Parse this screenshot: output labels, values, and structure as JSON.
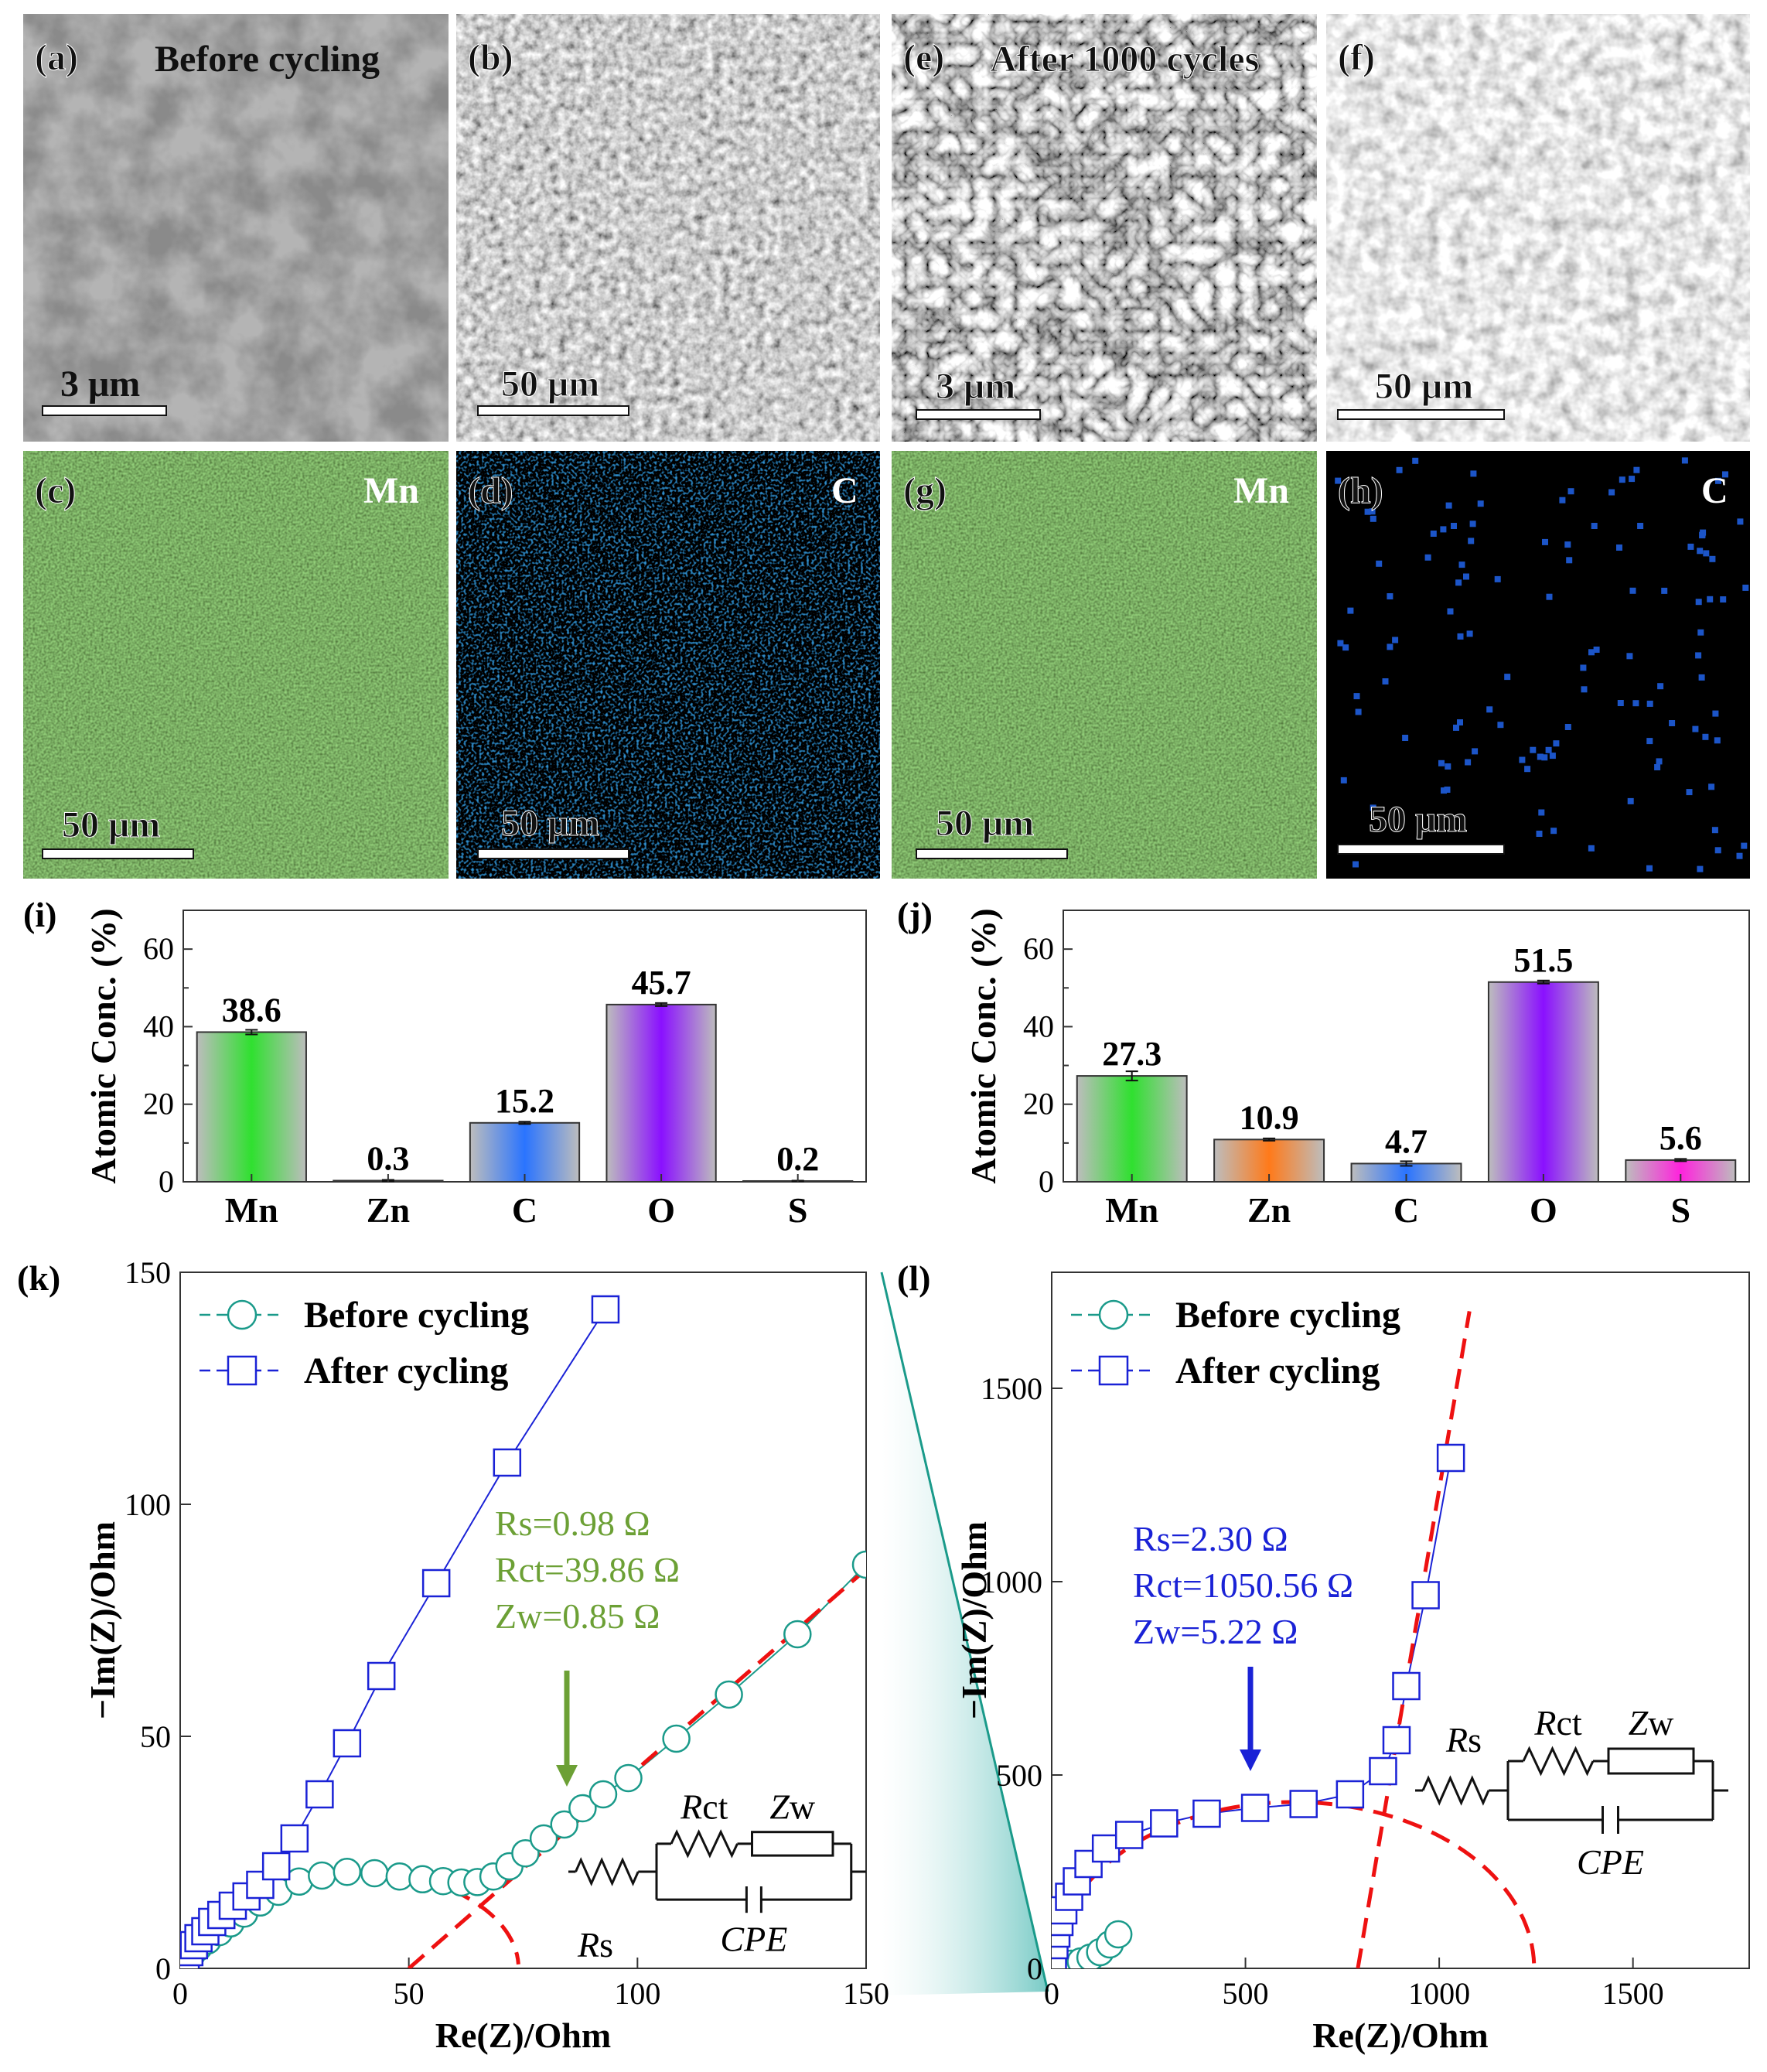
{
  "panels": {
    "a": {
      "label": "(a)",
      "caption": "Before cycling",
      "scale": "3 μm"
    },
    "b": {
      "label": "(b)",
      "scale": "50 μm"
    },
    "e": {
      "label": "(e)",
      "caption": "After 1000 cycles",
      "scale": "3 μm"
    },
    "f": {
      "label": "(f)",
      "scale": "50 μm"
    },
    "c": {
      "label": "(c)",
      "element": "Mn",
      "scale": "50 μm"
    },
    "d": {
      "label": "(d)",
      "element": "C",
      "scale": "50 μm"
    },
    "g": {
      "label": "(g)",
      "element": "Mn",
      "scale": "50 μm"
    },
    "h": {
      "label": "(h)",
      "element": "C",
      "scale": "50 μm"
    },
    "i": {
      "label": "(i)"
    },
    "j": {
      "label": "(j)"
    },
    "k": {
      "label": "(k)"
    },
    "l": {
      "label": "(l)"
    }
  },
  "colors": {
    "mn": "#2fe02f",
    "zn": "#ff7a1a",
    "c": "#2a74ff",
    "o": "#8a10ff",
    "s": "#ff22dd",
    "before": "#1a9a8a",
    "after": "#1a22d6",
    "fit": "#ee1111",
    "annot_before": "#6ca035",
    "annot_after": "#1a22d6"
  },
  "chart_data": [
    {
      "id": "i",
      "type": "bar",
      "categories": [
        "Mn",
        "Zn",
        "C",
        "O",
        "S"
      ],
      "values": [
        38.6,
        0.3,
        15.2,
        45.7,
        0.2
      ],
      "value_labels": [
        "38.6",
        "0.3",
        "15.2",
        "45.7",
        "0.2"
      ],
      "errors": [
        0.6,
        0.2,
        0.3,
        0.4,
        0.1
      ],
      "ylabel": "Atomic Conc. (%)",
      "ylim": [
        0,
        70
      ],
      "yticks": [
        0,
        20,
        40,
        60
      ],
      "tick_labels": [
        "0",
        "20",
        "40",
        "60"
      ]
    },
    {
      "id": "j",
      "type": "bar",
      "categories": [
        "Mn",
        "Zn",
        "C",
        "O",
        "S"
      ],
      "values": [
        27.3,
        10.9,
        4.7,
        51.5,
        5.6
      ],
      "value_labels": [
        "27.3",
        "10.9",
        "4.7",
        "51.5",
        "5.6"
      ],
      "errors": [
        1.2,
        0.3,
        0.6,
        0.4,
        0.3
      ],
      "ylabel": "Atomic Conc. (%)",
      "ylim": [
        0,
        70
      ],
      "yticks": [
        0,
        20,
        40,
        60
      ],
      "tick_labels": [
        "0",
        "20",
        "40",
        "60"
      ]
    },
    {
      "id": "k",
      "type": "scatter",
      "xlabel": "Re(Z)/Ohm",
      "ylabel": "−Im(Z)/Ohm",
      "xlim": [
        0,
        150
      ],
      "ylim": [
        0,
        150
      ],
      "xticks": [
        0,
        50,
        100,
        150
      ],
      "yticks": [
        0,
        50,
        100,
        150
      ],
      "xtick_labels": [
        "0",
        "50",
        "100",
        "150"
      ],
      "ytick_labels": [
        "0",
        "50",
        "100",
        "150"
      ],
      "legend": [
        "Before cycling",
        "After cycling"
      ],
      "series": [
        {
          "name": "Before cycling",
          "marker": "circle",
          "x": [
            0.5,
            1.2,
            2.5,
            4,
            6,
            8.5,
            11,
            14,
            17.5,
            21.5,
            26,
            31,
            36.5,
            42.5,
            48,
            53,
            57.5,
            61.5,
            65,
            68.5,
            72,
            75.5,
            79.5,
            84,
            88,
            92.5,
            98,
            108.5,
            120,
            135,
            150
          ],
          "y": [
            0.5,
            1.5,
            3,
            4.5,
            6,
            7.8,
            9.7,
            11.8,
            14.2,
            16.5,
            18.7,
            20,
            20.8,
            20.5,
            19.8,
            19.2,
            18.8,
            18.5,
            18.6,
            19.8,
            22,
            24.8,
            28,
            31,
            34.5,
            37.5,
            41,
            49.5,
            59,
            72,
            87
          ]
        },
        {
          "name": "After cycling",
          "marker": "square",
          "x": [
            0.5,
            1.2,
            2,
            3,
            4,
            5.5,
            7,
            9,
            11.5,
            14.5,
            17.5,
            21,
            25,
            30.5,
            36.5,
            44,
            56,
            71.5,
            93
          ],
          "y": [
            0.5,
            2,
            3.5,
            5,
            6.5,
            8,
            10,
            11.5,
            13.5,
            15.5,
            18,
            22,
            28,
            37.5,
            48.5,
            63,
            83,
            109,
            142
          ]
        }
      ],
      "annotation": [
        "Rs=0.98 Ω",
        "Rct=39.86 Ω",
        "Zw=0.85 Ω"
      ],
      "circuit": {
        "rs": "Rs",
        "rct": "Rct",
        "zw": "Zw",
        "cpe": "CPE"
      }
    },
    {
      "id": "l",
      "type": "scatter",
      "xlabel": "Re(Z)/Ohm",
      "ylabel": "−Im(Z)/Ohm",
      "xlim": [
        0,
        1800
      ],
      "ylim": [
        0,
        1800
      ],
      "xticks": [
        0,
        500,
        1000,
        1500
      ],
      "yticks": [
        0,
        500,
        1000,
        1500
      ],
      "xtick_labels": [
        "0",
        "500",
        "1000",
        "1500"
      ],
      "ytick_labels": [
        "0",
        "500",
        "1000",
        "1500"
      ],
      "legend": [
        "Before cycling",
        "After cycling"
      ],
      "series": [
        {
          "name": "Before cycling",
          "marker": "circle",
          "x": [
            5,
            15,
            30,
            50,
            75,
            100,
            125,
            150,
            172
          ],
          "y": [
            3,
            5,
            8,
            12,
            18,
            28,
            42,
            62,
            88
          ]
        },
        {
          "name": "After cycling",
          "marker": "square",
          "x": [
            3,
            7,
            12,
            20,
            30,
            45,
            65,
            95,
            140,
            200,
            290,
            400,
            525,
            650,
            770,
            855,
            890,
            915,
            965,
            1030
          ],
          "y": [
            30,
            60,
            90,
            120,
            150,
            185,
            225,
            270,
            310,
            345,
            375,
            400,
            415,
            425,
            450,
            510,
            590,
            730,
            965,
            1320
          ]
        }
      ],
      "annotation": [
        "Rs=2.30 Ω",
        "Rct=1050.56 Ω",
        "Zw=5.22 Ω"
      ],
      "circuit": {
        "rs": "Rs",
        "rct": "Rct",
        "zw": "Zw",
        "cpe": "CPE"
      }
    }
  ]
}
